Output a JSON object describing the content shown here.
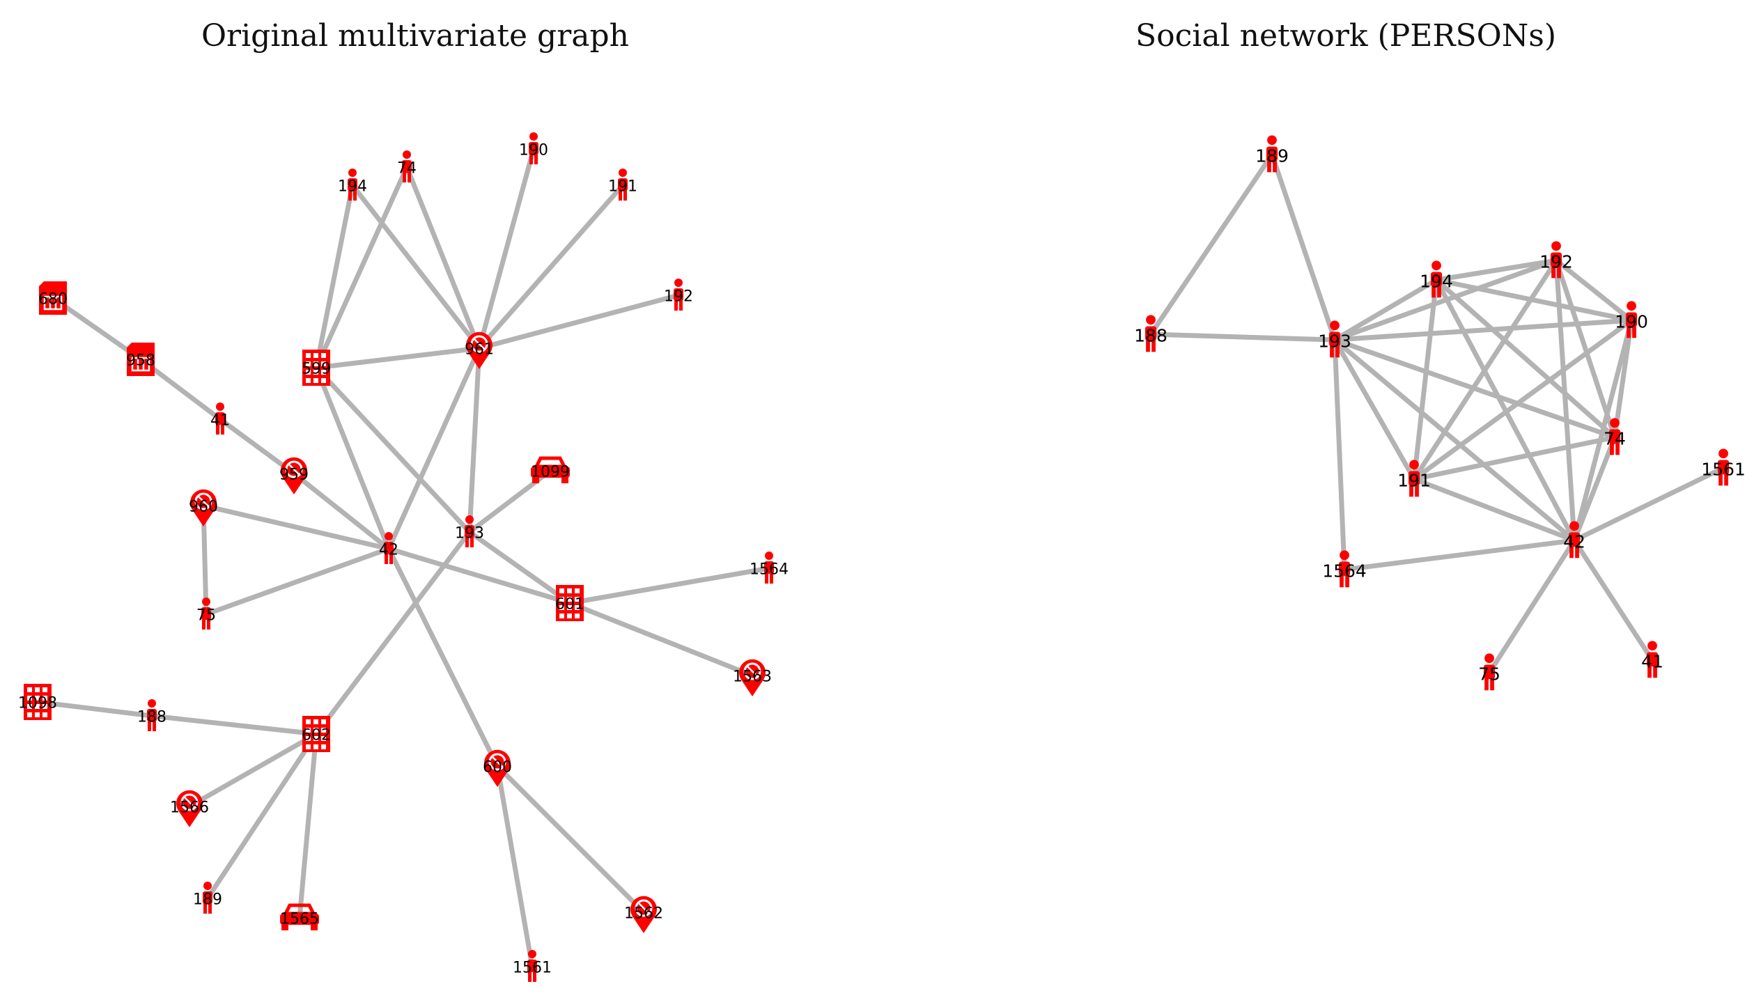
{
  "titles": {
    "left": "Original multivariate graph",
    "right": "Social network (PERSONs)"
  },
  "colors": {
    "node": "#ff0000",
    "edge": "#b3b3b3",
    "label": "#000000"
  },
  "graphs": [
    {
      "id": "multivariate",
      "nodes": [
        {
          "id": "680",
          "type": "sim-card-icon"
        },
        {
          "id": "958",
          "type": "sim-card-icon"
        },
        {
          "id": "41",
          "type": "person-icon"
        },
        {
          "id": "959",
          "type": "location-pin-icon"
        },
        {
          "id": "960",
          "type": "location-pin-icon"
        },
        {
          "id": "75",
          "type": "person-icon"
        },
        {
          "id": "42",
          "type": "person-icon"
        },
        {
          "id": "599",
          "type": "building-icon"
        },
        {
          "id": "194",
          "type": "person-icon"
        },
        {
          "id": "74",
          "type": "person-icon"
        },
        {
          "id": "190",
          "type": "person-icon"
        },
        {
          "id": "191",
          "type": "person-icon"
        },
        {
          "id": "192",
          "type": "person-icon"
        },
        {
          "id": "961",
          "type": "location-pin-icon"
        },
        {
          "id": "1099",
          "type": "car-icon"
        },
        {
          "id": "193",
          "type": "person-icon"
        },
        {
          "id": "601",
          "type": "building-icon"
        },
        {
          "id": "1564",
          "type": "person-icon"
        },
        {
          "id": "1563",
          "type": "location-pin-icon"
        },
        {
          "id": "1098",
          "type": "building-icon"
        },
        {
          "id": "188",
          "type": "person-icon"
        },
        {
          "id": "602",
          "type": "building-icon"
        },
        {
          "id": "1566",
          "type": "location-pin-icon"
        },
        {
          "id": "189",
          "type": "person-icon"
        },
        {
          "id": "1565",
          "type": "car-icon"
        },
        {
          "id": "600",
          "type": "location-pin-icon"
        },
        {
          "id": "1562",
          "type": "location-pin-icon"
        },
        {
          "id": "1561",
          "type": "person-icon"
        }
      ],
      "edges": [
        [
          "680",
          "958"
        ],
        [
          "958",
          "41"
        ],
        [
          "41",
          "959"
        ],
        [
          "959",
          "42"
        ],
        [
          "960",
          "42"
        ],
        [
          "960",
          "75"
        ],
        [
          "75",
          "42"
        ],
        [
          "599",
          "42"
        ],
        [
          "599",
          "194"
        ],
        [
          "599",
          "74"
        ],
        [
          "599",
          "961"
        ],
        [
          "599",
          "193"
        ],
        [
          "194",
          "961"
        ],
        [
          "74",
          "961"
        ],
        [
          "190",
          "961"
        ],
        [
          "191",
          "961"
        ],
        [
          "192",
          "961"
        ],
        [
          "961",
          "42"
        ],
        [
          "961",
          "193"
        ],
        [
          "193",
          "1099"
        ],
        [
          "193",
          "601"
        ],
        [
          "193",
          "602"
        ],
        [
          "42",
          "601"
        ],
        [
          "42",
          "600"
        ],
        [
          "601",
          "1564"
        ],
        [
          "601",
          "1563"
        ],
        [
          "1098",
          "188"
        ],
        [
          "188",
          "602"
        ],
        [
          "602",
          "1566"
        ],
        [
          "602",
          "189"
        ],
        [
          "602",
          "1565"
        ],
        [
          "600",
          "1562"
        ],
        [
          "600",
          "1561"
        ]
      ]
    },
    {
      "id": "social",
      "nodes": [
        {
          "id": "189",
          "type": "person-icon"
        },
        {
          "id": "188",
          "type": "person-icon"
        },
        {
          "id": "193",
          "type": "person-icon"
        },
        {
          "id": "194",
          "type": "person-icon"
        },
        {
          "id": "192",
          "type": "person-icon"
        },
        {
          "id": "190",
          "type": "person-icon"
        },
        {
          "id": "74",
          "type": "person-icon"
        },
        {
          "id": "191",
          "type": "person-icon"
        },
        {
          "id": "1561",
          "type": "person-icon"
        },
        {
          "id": "42",
          "type": "person-icon"
        },
        {
          "id": "1564",
          "type": "person-icon"
        },
        {
          "id": "75",
          "type": "person-icon"
        },
        {
          "id": "41",
          "type": "person-icon"
        }
      ],
      "edges": [
        [
          "189",
          "188"
        ],
        [
          "189",
          "193"
        ],
        [
          "188",
          "193"
        ],
        [
          "193",
          "194"
        ],
        [
          "193",
          "192"
        ],
        [
          "193",
          "190"
        ],
        [
          "193",
          "74"
        ],
        [
          "193",
          "191"
        ],
        [
          "193",
          "42"
        ],
        [
          "193",
          "1564"
        ],
        [
          "194",
          "192"
        ],
        [
          "194",
          "190"
        ],
        [
          "194",
          "74"
        ],
        [
          "194",
          "191"
        ],
        [
          "194",
          "42"
        ],
        [
          "192",
          "190"
        ],
        [
          "192",
          "74"
        ],
        [
          "192",
          "191"
        ],
        [
          "192",
          "42"
        ],
        [
          "190",
          "74"
        ],
        [
          "190",
          "191"
        ],
        [
          "190",
          "42"
        ],
        [
          "74",
          "191"
        ],
        [
          "74",
          "42"
        ],
        [
          "191",
          "42"
        ],
        [
          "42",
          "1561"
        ],
        [
          "42",
          "1564"
        ],
        [
          "42",
          "75"
        ],
        [
          "42",
          "41"
        ]
      ]
    }
  ]
}
